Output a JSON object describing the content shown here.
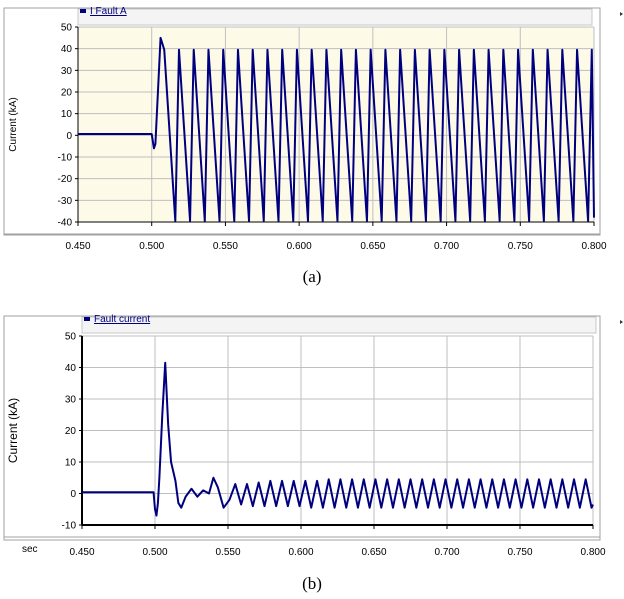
{
  "captions": [
    "(a)",
    "(b)"
  ],
  "colors": {
    "plot_bg_a": "#fefae8",
    "plot_bg_b": "#ffffff",
    "trace": "#00007f",
    "grid": "#bfbfbf",
    "axis": "#000000",
    "panel_frame": "#a0a0a0"
  },
  "chart_data": [
    {
      "type": "line",
      "title": "",
      "legend": [
        "I Fault A"
      ],
      "xlabel": "",
      "ylabel": "Current (kA)",
      "xlim": [
        0.45,
        0.8
      ],
      "ylim": [
        -40,
        50
      ],
      "x_ticks": [
        "0.450",
        "0.500",
        "0.550",
        "0.600",
        "0.650",
        "0.700",
        "0.750",
        "0.800"
      ],
      "y_ticks": [
        "50",
        "40",
        "30",
        "20",
        "10",
        "0",
        "-10",
        "-20",
        "-30",
        "-40"
      ],
      "grid": true,
      "series": [
        {
          "name": "I Fault A",
          "fault_time": 0.5,
          "pre_fault_value": 0.6,
          "initial_dip": -6,
          "frequency_hz": 50,
          "first_peak": 45,
          "steady_amplitude": 39.5,
          "x": [
            0.45,
            0.5,
            0.5015,
            0.5025,
            0.506,
            0.5085,
            0.516,
            0.5185,
            0.526,
            0.5285,
            0.536,
            0.5385,
            0.546,
            0.5485,
            0.556,
            0.5585,
            0.566,
            0.5685,
            0.576,
            0.5785,
            0.586,
            0.5885,
            0.596,
            0.5985,
            0.606,
            0.6085,
            0.616,
            0.6185,
            0.626,
            0.6285,
            0.636,
            0.6385,
            0.646,
            0.6485,
            0.656,
            0.6585,
            0.666,
            0.6685,
            0.676,
            0.6785,
            0.686,
            0.6885,
            0.696,
            0.6985,
            0.706,
            0.7085,
            0.716,
            0.7185,
            0.726,
            0.7285,
            0.736,
            0.7385,
            0.746,
            0.7485,
            0.756,
            0.7585,
            0.766,
            0.7685,
            0.776,
            0.7785,
            0.786,
            0.7885,
            0.796,
            0.7985,
            0.8
          ],
          "y": [
            0.6,
            0.6,
            -6,
            -4,
            45,
            39.5,
            -39.5,
            39.5,
            -39.5,
            39.5,
            -39.5,
            39.5,
            -39.5,
            39.5,
            -39.5,
            39.5,
            -39.5,
            39.5,
            -39.5,
            39.5,
            -39.5,
            39.5,
            -39.5,
            39.5,
            -39.5,
            39.5,
            -39.5,
            39.5,
            -39.5,
            39.5,
            -39.5,
            39.5,
            -39.5,
            39.5,
            -39.5,
            39.5,
            -39.5,
            39.5,
            -39.5,
            39.5,
            -39.5,
            39.5,
            -39.5,
            39.5,
            -39.5,
            39.5,
            -39.5,
            39.5,
            -39.5,
            39.5,
            -39.5,
            39.5,
            -39.5,
            39.5,
            -39.5,
            39.5,
            -39.5,
            39.5,
            -39.5,
            39.5,
            -39.5,
            39.5,
            -39.5,
            39.5,
            -38
          ]
        }
      ]
    },
    {
      "type": "line",
      "title": "",
      "legend": [
        "Fault current"
      ],
      "xlabel": "sec",
      "ylabel": "Current (kA)",
      "xlim": [
        0.45,
        0.8
      ],
      "ylim": [
        -10,
        50
      ],
      "x_ticks": [
        "0.450",
        "0.500",
        "0.550",
        "0.600",
        "0.650",
        "0.700",
        "0.750",
        "0.800"
      ],
      "y_ticks": [
        "50",
        "40",
        "30",
        "20",
        "10",
        "0",
        "-10"
      ],
      "grid": true,
      "series": [
        {
          "name": "Fault current",
          "fault_time": 0.5,
          "pre_fault_value": 0.4,
          "peak": 41.5,
          "peak_time": 0.507,
          "frequency_hz": 50,
          "steady_max": 4.5,
          "steady_min": -4.5,
          "x": [
            0.45,
            0.499,
            0.5,
            0.501,
            0.502,
            0.503,
            0.505,
            0.507,
            0.509,
            0.511,
            0.514,
            0.516,
            0.518,
            0.521,
            0.525,
            0.529,
            0.533,
            0.537,
            0.54,
            0.543,
            0.547,
            0.551,
            0.555,
            0.559,
            0.563,
            0.567,
            0.571,
            0.575,
            0.579,
            0.583,
            0.587,
            0.591,
            0.595,
            0.599,
            0.603,
            0.607,
            0.611,
            0.615,
            0.619,
            0.623,
            0.627,
            0.631,
            0.635,
            0.639,
            0.643,
            0.647,
            0.651,
            0.655,
            0.659,
            0.663,
            0.667,
            0.671,
            0.675,
            0.679,
            0.683,
            0.687,
            0.691,
            0.695,
            0.699,
            0.703,
            0.707,
            0.711,
            0.715,
            0.719,
            0.723,
            0.727,
            0.731,
            0.735,
            0.739,
            0.743,
            0.747,
            0.751,
            0.755,
            0.759,
            0.763,
            0.767,
            0.771,
            0.775,
            0.779,
            0.783,
            0.787,
            0.791,
            0.795,
            0.799,
            0.8
          ],
          "y": [
            0.4,
            0.4,
            -5,
            -7,
            -3,
            5,
            25,
            41.5,
            22,
            10,
            4,
            -3,
            -4.5,
            -1,
            1.5,
            -1,
            1,
            0,
            5,
            2,
            -4.5,
            -2,
            3,
            -3.5,
            3,
            -4,
            3.5,
            -4,
            4,
            -4,
            4,
            -4,
            4,
            -4,
            4,
            -4.5,
            4,
            -4.5,
            4.5,
            -4.5,
            4.5,
            -4.5,
            4.5,
            -4.5,
            4.5,
            -4.5,
            4.5,
            -4.5,
            4.5,
            -4.5,
            4.5,
            -4.5,
            4.5,
            -4.5,
            4.5,
            -4.5,
            4.5,
            -4.5,
            4.5,
            -4.5,
            4.5,
            -4.5,
            4.5,
            -4.5,
            4.5,
            -4.5,
            4.5,
            -4.5,
            4.5,
            -4.5,
            4.5,
            -4.5,
            4.5,
            -4.5,
            4.5,
            -4.5,
            4.5,
            -4.5,
            4.5,
            -4.5,
            4.5,
            -4.5,
            4.5,
            -4.5,
            -3.5
          ]
        }
      ]
    }
  ]
}
